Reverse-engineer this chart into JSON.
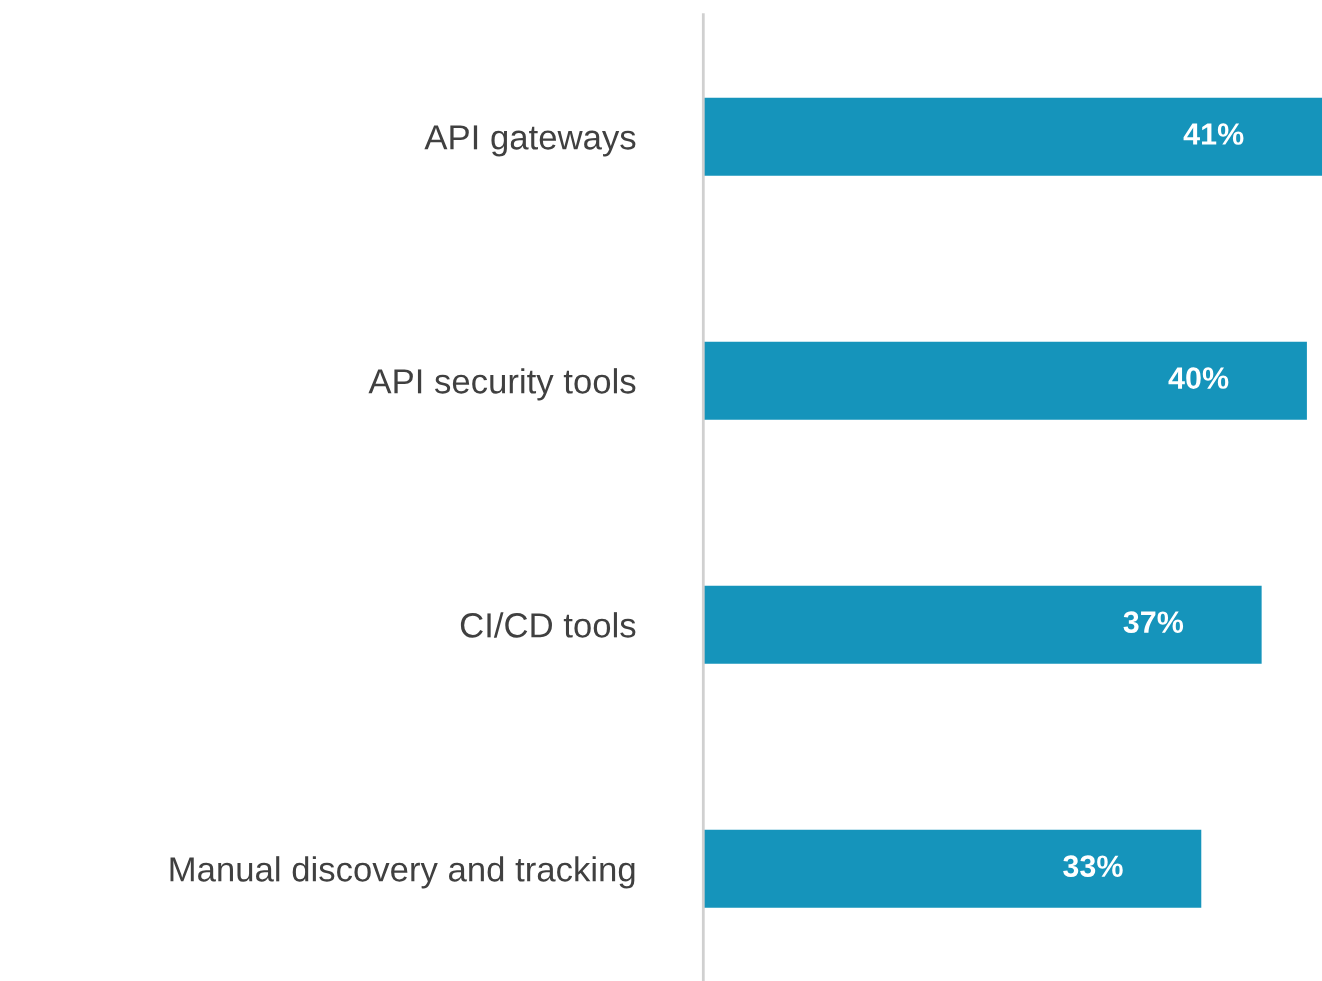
{
  "chart_data": {
    "type": "bar",
    "orientation": "horizontal",
    "categories": [
      "API gateways",
      "API security tools",
      "CI/CD tools",
      "Manual discovery and tracking"
    ],
    "values": [
      41,
      40,
      37,
      33
    ],
    "value_labels": [
      "41%",
      "40%",
      "37%",
      "33%"
    ],
    "color": "#1594bb",
    "xlim": [
      0,
      41
    ],
    "tick_labels": "y",
    "grid": false,
    "legend": false
  }
}
